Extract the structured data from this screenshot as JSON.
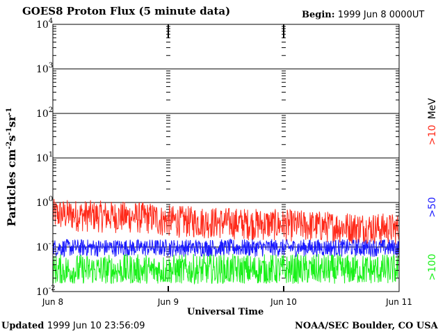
{
  "header": {
    "title": "GOES8 Proton Flux (5 minute data)",
    "begin_label": "Begin:",
    "begin_value": "1999 Jun 8 0000UT"
  },
  "footer": {
    "updated_label": "Updated",
    "updated_value": "1999 Jun 10 23:56:09",
    "source": "NOAA/SEC Boulder, CO USA"
  },
  "colors": {
    "above10": "#ff2a1a",
    "above50": "#1a1aff",
    "above100": "#19f019",
    "axis": "#000000"
  },
  "chart_data": {
    "type": "line",
    "title": "GOES8 Proton Flux (5 minute data)",
    "xlabel": "Universal Time",
    "ylabel": "Particles cm⁻²s⁻¹sr⁻¹",
    "yscale": "log",
    "ylim": [
      0.01,
      10000
    ],
    "yticks": [
      {
        "value": 0.01,
        "base": "10",
        "exp": "-2"
      },
      {
        "value": 0.1,
        "base": "10",
        "exp": "-1"
      },
      {
        "value": 1,
        "base": "10",
        "exp": "0"
      },
      {
        "value": 10,
        "base": "10",
        "exp": "1"
      },
      {
        "value": 100,
        "base": "10",
        "exp": "2"
      },
      {
        "value": 1000,
        "base": "10",
        "exp": "3"
      },
      {
        "value": 10000,
        "base": "10",
        "exp": "4"
      }
    ],
    "xlim": [
      "1999-06-08",
      "1999-06-11"
    ],
    "xticks": [
      {
        "value": "1999-06-08",
        "label": "Jun 8"
      },
      {
        "value": "1999-06-09",
        "label": "Jun 9"
      },
      {
        "value": "1999-06-10",
        "label": "Jun 10"
      },
      {
        "value": "1999-06-11",
        "label": "Jun 11"
      }
    ],
    "grid": true,
    "legend_position": "right",
    "series": [
      {
        "name": ">10 MeV",
        "color": "#ff2a1a",
        "typical_range": [
          0.15,
          0.8
        ]
      },
      {
        "name": ">50",
        "color": "#1a1aff",
        "typical_range": [
          0.06,
          0.15
        ]
      },
      {
        "name": ">100",
        "color": "#19f019",
        "typical_range": [
          0.015,
          0.07
        ]
      }
    ]
  }
}
